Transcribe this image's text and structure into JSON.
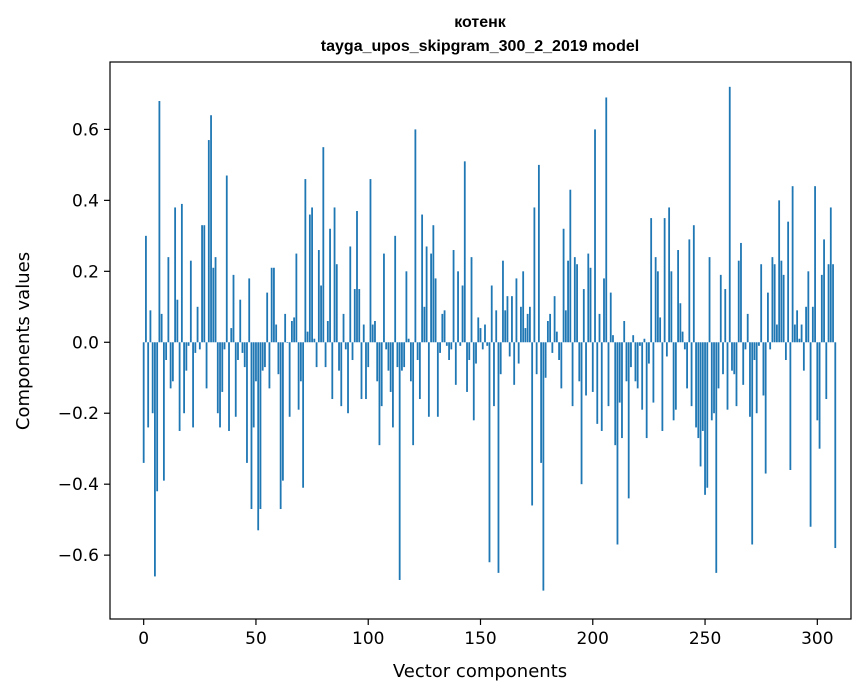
{
  "chart_data": {
    "type": "bar",
    "title": "котенк",
    "subtitle": "tayga_upos_skipgram_300_2_2019 model",
    "xlabel": "Vector components",
    "ylabel": "Components values",
    "xlim": [
      -15,
      315
    ],
    "ylim": [
      -0.78,
      0.79
    ],
    "xticks": [
      0,
      50,
      100,
      150,
      200,
      250,
      300
    ],
    "xtick_labels": [
      "0",
      "50",
      "100",
      "150",
      "200",
      "250",
      "300"
    ],
    "yticks": [
      -0.6,
      -0.4,
      -0.2,
      0.0,
      0.2,
      0.4,
      0.6
    ],
    "ytick_labels": [
      "−0.6",
      "−0.4",
      "−0.2",
      "0.0",
      "0.2",
      "0.4",
      "0.6"
    ],
    "grid": false,
    "bar_color": "#1f77b4",
    "values": [
      -0.34,
      0.3,
      -0.24,
      0.09,
      -0.2,
      -0.66,
      -0.42,
      0.68,
      0.08,
      -0.39,
      -0.05,
      0.24,
      -0.13,
      -0.11,
      0.38,
      0.12,
      -0.25,
      0.39,
      -0.2,
      -0.08,
      -0.01,
      0.23,
      -0.24,
      -0.03,
      0.1,
      -0.02,
      0.33,
      0.33,
      -0.13,
      0.57,
      0.64,
      0.21,
      0.24,
      -0.2,
      -0.24,
      -0.14,
      -0.02,
      0.47,
      -0.25,
      0.04,
      0.19,
      -0.21,
      -0.05,
      0.12,
      -0.03,
      -0.07,
      -0.34,
      0.18,
      -0.47,
      -0.24,
      -0.11,
      -0.53,
      -0.47,
      -0.08,
      -0.07,
      0.14,
      -0.13,
      0.21,
      0.21,
      0.05,
      -0.09,
      -0.47,
      -0.39,
      0.08,
      0.0,
      -0.21,
      0.06,
      0.07,
      0.25,
      -0.19,
      -0.11,
      -0.41,
      0.46,
      0.03,
      0.36,
      0.38,
      0.01,
      -0.07,
      0.26,
      0.16,
      0.55,
      -0.07,
      0.06,
      0.32,
      -0.16,
      0.38,
      0.22,
      -0.08,
      -0.18,
      0.08,
      -0.02,
      -0.2,
      0.27,
      -0.05,
      0.15,
      0.37,
      0.15,
      -0.16,
      0.05,
      -0.16,
      -0.07,
      0.46,
      0.05,
      0.06,
      -0.11,
      -0.29,
      -0.18,
      0.25,
      -0.02,
      -0.08,
      -0.14,
      -0.24,
      0.3,
      -0.07,
      -0.67,
      -0.08,
      -0.07,
      0.2,
      0.01,
      -0.11,
      -0.29,
      0.6,
      -0.05,
      -0.16,
      0.36,
      0.1,
      0.27,
      -0.21,
      0.25,
      0.33,
      0.18,
      -0.21,
      -0.03,
      0.08,
      0.09,
      -0.01,
      -0.05,
      -0.02,
      0.26,
      -0.12,
      0.2,
      -0.01,
      0.16,
      0.51,
      -0.14,
      -0.05,
      0.24,
      -0.22,
      -0.06,
      0.07,
      0.04,
      -0.02,
      0.05,
      -0.01,
      -0.62,
      0.16,
      -0.18,
      0.09,
      -0.65,
      -0.09,
      0.23,
      0.09,
      0.13,
      -0.04,
      0.13,
      -0.12,
      0.18,
      -0.06,
      0.1,
      0.2,
      0.04,
      0.08,
      0.1,
      -0.46,
      0.38,
      -0.09,
      0.5,
      -0.34,
      -0.7,
      -0.1,
      0.06,
      0.08,
      -0.03,
      0.13,
      0.03,
      -0.05,
      -0.13,
      0.32,
      0.09,
      0.23,
      0.43,
      -0.18,
      0.24,
      0.22,
      -0.11,
      -0.4,
      0.15,
      -0.15,
      0.25,
      0.21,
      -0.14,
      0.6,
      -0.23,
      0.08,
      -0.25,
      0.18,
      0.69,
      -0.18,
      0.14,
      0.02,
      -0.29,
      -0.57,
      -0.17,
      -0.27,
      0.06,
      -0.11,
      -0.44,
      -0.07,
      0.02,
      -0.11,
      -0.13,
      -0.01,
      -0.19,
      0.01,
      -0.27,
      -0.06,
      0.35,
      -0.17,
      0.24,
      0.2,
      0.07,
      -0.25,
      0.35,
      -0.04,
      0.38,
      0.2,
      -0.22,
      -0.19,
      0.26,
      0.11,
      0.03,
      -0.02,
      -0.13,
      0.29,
      -0.18,
      0.33,
      -0.24,
      -0.27,
      -0.35,
      -0.25,
      -0.43,
      -0.41,
      0.24,
      -0.22,
      -0.2,
      -0.65,
      -0.13,
      0.19,
      -0.09,
      0.15,
      -0.19,
      0.72,
      -0.08,
      -0.09,
      -0.18,
      0.23,
      0.28,
      -0.12,
      -0.02,
      0.08,
      -0.21,
      -0.57,
      -0.05,
      -0.2,
      -0.01,
      0.22,
      -0.15,
      -0.37,
      0.14,
      -0.02,
      0.24,
      0.22,
      0.05,
      0.4,
      0.23,
      0.19,
      -0.05,
      0.34,
      -0.36,
      0.44,
      0.05,
      0.09,
      0.01,
      0.05,
      -0.08,
      0.1,
      0.2,
      -0.52,
      0.1,
      0.44,
      -0.22,
      -0.3,
      0.19,
      0.29,
      -0.16,
      0.22,
      0.38,
      0.22,
      -0.58
    ]
  }
}
